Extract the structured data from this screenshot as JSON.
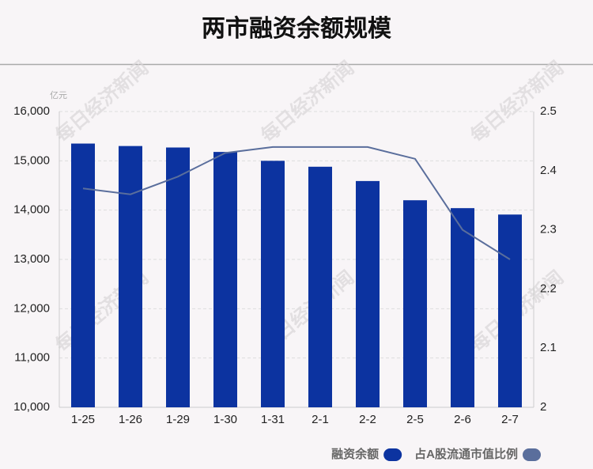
{
  "chart_data": {
    "type": "bar",
    "title": "两市融资余额规模",
    "unit_label": "亿元",
    "watermark": "每日经济新闻",
    "categories": [
      "1-25",
      "1-26",
      "1-29",
      "1-30",
      "1-31",
      "2-1",
      "2-2",
      "2-5",
      "2-6",
      "2-7"
    ],
    "series": [
      {
        "name": "融资余额",
        "color": "#0c33a0",
        "values": [
          15350,
          15300,
          15270,
          15180,
          15000,
          14880,
          14590,
          14200,
          14040,
          13910
        ]
      },
      {
        "name": "占A股流通市值比例",
        "color": "#5a6e9c",
        "type": "line",
        "axis": "y2",
        "values": [
          2.37,
          2.36,
          2.39,
          2.43,
          2.44,
          2.44,
          2.44,
          2.42,
          2.3,
          2.25
        ]
      }
    ],
    "ylim": [
      10000,
      16000
    ],
    "yticks": [
      {
        "value": 10000,
        "label": "10,000"
      },
      {
        "value": 11000,
        "label": "11,000"
      },
      {
        "value": 12000,
        "label": "12,000"
      },
      {
        "value": 13000,
        "label": "13,000"
      },
      {
        "value": 14000,
        "label": "14,000"
      },
      {
        "value": 15000,
        "label": "15,000"
      },
      {
        "value": 16000,
        "label": "16,000"
      }
    ],
    "y2lim": [
      2,
      2.5
    ],
    "y2ticks": [
      2,
      2.1,
      2.2,
      2.3,
      2.4,
      2.5
    ],
    "grid": true,
    "legend": "bottom-right"
  }
}
